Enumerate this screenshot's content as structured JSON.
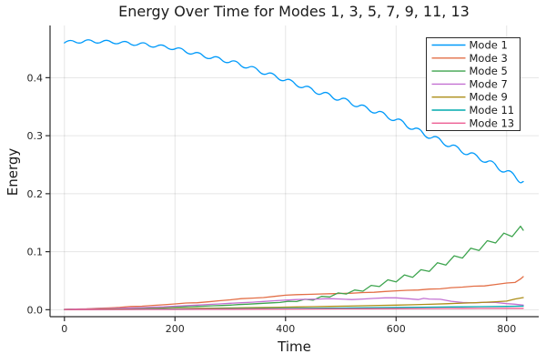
{
  "chart_data": {
    "type": "line",
    "title": "Energy Over Time for Modes 1, 3, 5, 7, 9, 11, 13",
    "xlabel": "Time",
    "ylabel": "Energy",
    "xlim": [
      -26,
      858
    ],
    "ylim": [
      -0.012,
      0.49
    ],
    "x_ticks": [
      0,
      200,
      400,
      600,
      800
    ],
    "x_tick_labels": [
      "0",
      "200",
      "400",
      "600",
      "800"
    ],
    "y_ticks": [
      0.0,
      0.1,
      0.2,
      0.3,
      0.4
    ],
    "y_tick_labels": [
      "0.0",
      "0.1",
      "0.2",
      "0.3",
      "0.4"
    ],
    "grid": true,
    "legend_position": "top-right",
    "colors": {
      "grid": "rgba(0,0,0,0.10)",
      "axis": "#2a2a2a",
      "tick_label": "#262626",
      "legend_background": "#ffffff",
      "legend_border": "#2a2a2a"
    },
    "series": [
      {
        "name": "Mode 1",
        "color": "#009AFA",
        "smooth": true,
        "points": [
          [
            0,
            0.46
          ],
          [
            10,
            0.467
          ],
          [
            27,
            0.457
          ],
          [
            43,
            0.468
          ],
          [
            60,
            0.457
          ],
          [
            76,
            0.467
          ],
          [
            93,
            0.456
          ],
          [
            110,
            0.465
          ],
          [
            126,
            0.453
          ],
          [
            143,
            0.463
          ],
          [
            159,
            0.45
          ],
          [
            176,
            0.459
          ],
          [
            193,
            0.446
          ],
          [
            209,
            0.454
          ],
          [
            226,
            0.438
          ],
          [
            242,
            0.446
          ],
          [
            259,
            0.43
          ],
          [
            276,
            0.439
          ],
          [
            292,
            0.423
          ],
          [
            309,
            0.432
          ],
          [
            325,
            0.414
          ],
          [
            342,
            0.422
          ],
          [
            359,
            0.403
          ],
          [
            375,
            0.411
          ],
          [
            392,
            0.392
          ],
          [
            408,
            0.4
          ],
          [
            425,
            0.38
          ],
          [
            442,
            0.388
          ],
          [
            458,
            0.368
          ],
          [
            475,
            0.378
          ],
          [
            491,
            0.358
          ],
          [
            508,
            0.368
          ],
          [
            525,
            0.347
          ],
          [
            541,
            0.356
          ],
          [
            558,
            0.336
          ],
          [
            574,
            0.345
          ],
          [
            591,
            0.323
          ],
          [
            608,
            0.332
          ],
          [
            624,
            0.308
          ],
          [
            641,
            0.316
          ],
          [
            657,
            0.292
          ],
          [
            674,
            0.302
          ],
          [
            691,
            0.278
          ],
          [
            707,
            0.287
          ],
          [
            724,
            0.264
          ],
          [
            740,
            0.274
          ],
          [
            757,
            0.251
          ],
          [
            774,
            0.26
          ],
          [
            790,
            0.234
          ],
          [
            807,
            0.243
          ],
          [
            823,
            0.217
          ],
          [
            830,
            0.221
          ]
        ]
      },
      {
        "name": "Mode 3",
        "color": "#E36F47",
        "smooth": false,
        "points": [
          [
            0,
            0.0005
          ],
          [
            20,
            0.001
          ],
          [
            40,
            0.0015
          ],
          [
            60,
            0.0025
          ],
          [
            80,
            0.003
          ],
          [
            100,
            0.004
          ],
          [
            120,
            0.0055
          ],
          [
            140,
            0.006
          ],
          [
            160,
            0.0075
          ],
          [
            180,
            0.0085
          ],
          [
            200,
            0.01
          ],
          [
            220,
            0.0115
          ],
          [
            240,
            0.012
          ],
          [
            260,
            0.0135
          ],
          [
            280,
            0.0155
          ],
          [
            300,
            0.017
          ],
          [
            320,
            0.019
          ],
          [
            340,
            0.02
          ],
          [
            360,
            0.021
          ],
          [
            380,
            0.023
          ],
          [
            400,
            0.025
          ],
          [
            420,
            0.026
          ],
          [
            440,
            0.0265
          ],
          [
            460,
            0.027
          ],
          [
            480,
            0.0275
          ],
          [
            500,
            0.028
          ],
          [
            520,
            0.0285
          ],
          [
            540,
            0.0295
          ],
          [
            560,
            0.03
          ],
          [
            580,
            0.0315
          ],
          [
            600,
            0.0325
          ],
          [
            620,
            0.0335
          ],
          [
            640,
            0.034
          ],
          [
            660,
            0.0355
          ],
          [
            680,
            0.036
          ],
          [
            700,
            0.038
          ],
          [
            720,
            0.039
          ],
          [
            740,
            0.0405
          ],
          [
            760,
            0.041
          ],
          [
            780,
            0.0435
          ],
          [
            800,
            0.046
          ],
          [
            815,
            0.047
          ],
          [
            825,
            0.053
          ],
          [
            830,
            0.057
          ]
        ]
      },
      {
        "name": "Mode 5",
        "color": "#3DA44E",
        "smooth": false,
        "points": [
          [
            0,
            0.0005
          ],
          [
            15,
            0.001
          ],
          [
            30,
            0.001
          ],
          [
            45,
            0.0012
          ],
          [
            60,
            0.0014
          ],
          [
            75,
            0.0017
          ],
          [
            90,
            0.0019
          ],
          [
            105,
            0.0021
          ],
          [
            120,
            0.0025
          ],
          [
            135,
            0.0028
          ],
          [
            150,
            0.0032
          ],
          [
            165,
            0.0036
          ],
          [
            180,
            0.004
          ],
          [
            195,
            0.0044
          ],
          [
            210,
            0.0048
          ],
          [
            225,
            0.0052
          ],
          [
            240,
            0.0057
          ],
          [
            255,
            0.0062
          ],
          [
            270,
            0.0068
          ],
          [
            285,
            0.0073
          ],
          [
            300,
            0.008
          ],
          [
            315,
            0.0088
          ],
          [
            330,
            0.0095
          ],
          [
            345,
            0.0102
          ],
          [
            360,
            0.011
          ],
          [
            375,
            0.0118
          ],
          [
            390,
            0.0125
          ],
          [
            405,
            0.0145
          ],
          [
            420,
            0.014
          ],
          [
            435,
            0.018
          ],
          [
            450,
            0.0165
          ],
          [
            465,
            0.023
          ],
          [
            480,
            0.022
          ],
          [
            495,
            0.029
          ],
          [
            510,
            0.027
          ],
          [
            525,
            0.034
          ],
          [
            540,
            0.032
          ],
          [
            555,
            0.042
          ],
          [
            570,
            0.04
          ],
          [
            585,
            0.0515
          ],
          [
            600,
            0.048
          ],
          [
            615,
            0.06
          ],
          [
            630,
            0.056
          ],
          [
            645,
            0.069
          ],
          [
            660,
            0.066
          ],
          [
            675,
            0.081
          ],
          [
            690,
            0.077
          ],
          [
            705,
            0.093
          ],
          [
            720,
            0.089
          ],
          [
            735,
            0.106
          ],
          [
            750,
            0.102
          ],
          [
            765,
            0.119
          ],
          [
            780,
            0.115
          ],
          [
            795,
            0.132
          ],
          [
            810,
            0.126
          ],
          [
            825,
            0.144
          ],
          [
            830,
            0.137
          ]
        ]
      },
      {
        "name": "Mode 7",
        "color": "#C371D2",
        "smooth": false,
        "points": [
          [
            0,
            0.0005
          ],
          [
            20,
            0.001
          ],
          [
            40,
            0.0013
          ],
          [
            60,
            0.0016
          ],
          [
            80,
            0.002
          ],
          [
            100,
            0.0025
          ],
          [
            120,
            0.003
          ],
          [
            140,
            0.0037
          ],
          [
            160,
            0.0044
          ],
          [
            180,
            0.005
          ],
          [
            200,
            0.006
          ],
          [
            220,
            0.007
          ],
          [
            240,
            0.008
          ],
          [
            260,
            0.009
          ],
          [
            280,
            0.01
          ],
          [
            300,
            0.011
          ],
          [
            320,
            0.012
          ],
          [
            340,
            0.013
          ],
          [
            360,
            0.0142
          ],
          [
            380,
            0.0155
          ],
          [
            400,
            0.0165
          ],
          [
            420,
            0.0175
          ],
          [
            440,
            0.018
          ],
          [
            460,
            0.0185
          ],
          [
            480,
            0.019
          ],
          [
            500,
            0.0185
          ],
          [
            520,
            0.0175
          ],
          [
            540,
            0.0185
          ],
          [
            560,
            0.0195
          ],
          [
            580,
            0.0205
          ],
          [
            600,
            0.0205
          ],
          [
            620,
            0.019
          ],
          [
            640,
            0.0175
          ],
          [
            650,
            0.0195
          ],
          [
            660,
            0.0185
          ],
          [
            680,
            0.018
          ],
          [
            700,
            0.0145
          ],
          [
            720,
            0.0125
          ],
          [
            740,
            0.0118
          ],
          [
            760,
            0.0128
          ],
          [
            780,
            0.0125
          ],
          [
            800,
            0.0105
          ],
          [
            815,
            0.0095
          ],
          [
            830,
            0.008
          ]
        ]
      },
      {
        "name": "Mode 9",
        "color": "#AC8E18",
        "smooth": false,
        "points": [
          [
            0,
            0.0003
          ],
          [
            30,
            0.0005
          ],
          [
            60,
            0.0007
          ],
          [
            90,
            0.001
          ],
          [
            120,
            0.0012
          ],
          [
            150,
            0.0015
          ],
          [
            180,
            0.0018
          ],
          [
            210,
            0.0021
          ],
          [
            240,
            0.0025
          ],
          [
            270,
            0.0028
          ],
          [
            300,
            0.0031
          ],
          [
            330,
            0.0035
          ],
          [
            360,
            0.0039
          ],
          [
            390,
            0.0043
          ],
          [
            420,
            0.0048
          ],
          [
            450,
            0.0052
          ],
          [
            480,
            0.0057
          ],
          [
            510,
            0.0062
          ],
          [
            540,
            0.0068
          ],
          [
            570,
            0.0074
          ],
          [
            600,
            0.008
          ],
          [
            630,
            0.0086
          ],
          [
            660,
            0.0093
          ],
          [
            690,
            0.0103
          ],
          [
            720,
            0.0113
          ],
          [
            750,
            0.0123
          ],
          [
            780,
            0.0138
          ],
          [
            800,
            0.0148
          ],
          [
            815,
            0.0185
          ],
          [
            830,
            0.021
          ]
        ]
      },
      {
        "name": "Mode 11",
        "color": "#00AAAE",
        "smooth": false,
        "points": [
          [
            0,
            0.0002
          ],
          [
            50,
            0.0004
          ],
          [
            100,
            0.0006
          ],
          [
            150,
            0.0008
          ],
          [
            200,
            0.001
          ],
          [
            250,
            0.0013
          ],
          [
            300,
            0.0016
          ],
          [
            350,
            0.0018
          ],
          [
            400,
            0.0021
          ],
          [
            450,
            0.0025
          ],
          [
            500,
            0.0029
          ],
          [
            550,
            0.0033
          ],
          [
            600,
            0.0038
          ],
          [
            650,
            0.0043
          ],
          [
            700,
            0.0048
          ],
          [
            750,
            0.0053
          ],
          [
            800,
            0.0058
          ],
          [
            830,
            0.0062
          ]
        ]
      },
      {
        "name": "Mode 13",
        "color": "#ED5E93",
        "smooth": false,
        "points": [
          [
            0,
            0.0002
          ],
          [
            50,
            0.0003
          ],
          [
            100,
            0.0004
          ],
          [
            150,
            0.0005
          ],
          [
            200,
            0.0006
          ],
          [
            250,
            0.0008
          ],
          [
            300,
            0.0009
          ],
          [
            350,
            0.001
          ],
          [
            400,
            0.0012
          ],
          [
            450,
            0.0013
          ],
          [
            500,
            0.0015
          ],
          [
            550,
            0.0016
          ],
          [
            600,
            0.0018
          ],
          [
            650,
            0.0019
          ],
          [
            700,
            0.0021
          ],
          [
            750,
            0.0022
          ],
          [
            800,
            0.0024
          ],
          [
            830,
            0.0025
          ]
        ]
      }
    ]
  }
}
